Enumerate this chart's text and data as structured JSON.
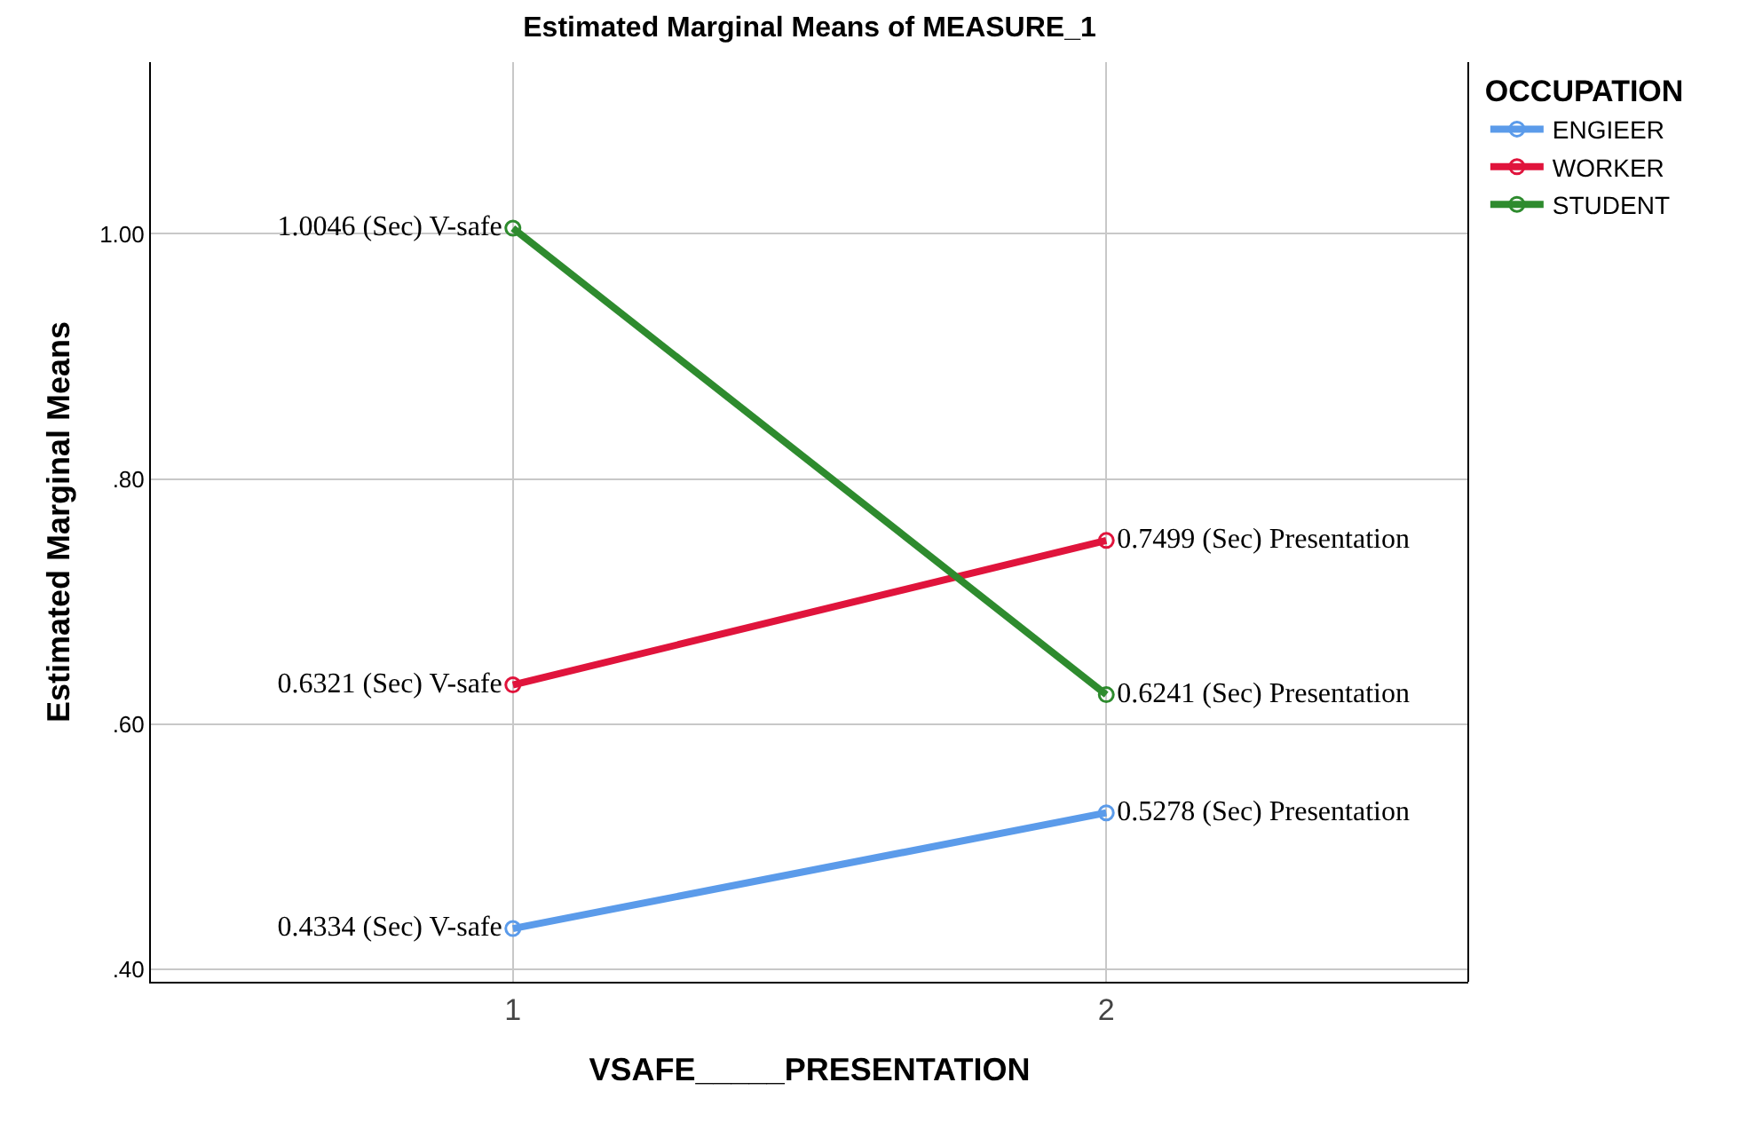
{
  "chart_data": {
    "type": "line",
    "title": "Estimated Marginal Means of MEASURE_1",
    "xlabel": "VSAFE_____PRESENTATION",
    "ylabel": "Estimated Marginal Means",
    "legend_title": "OCCUPATION",
    "categories": [
      "1",
      "2"
    ],
    "series": [
      {
        "name": "ENGIEER",
        "color": "#5b9bea",
        "values": [
          0.4334,
          0.5278
        ],
        "value_labels": [
          "0.4334 (Sec) V-safe",
          "0.5278 (Sec) Presentation"
        ]
      },
      {
        "name": "WORKER",
        "color": "#e0143c",
        "values": [
          0.6321,
          0.7499
        ],
        "value_labels": [
          "0.6321 (Sec) V-safe",
          "0.7499 (Sec) Presentation"
        ]
      },
      {
        "name": "STUDENT",
        "color": "#2e8b2e",
        "values": [
          1.0046,
          0.6241
        ],
        "value_labels": [
          "1.0046 (Sec) V-safe",
          "0.6241 (Sec) Presentation"
        ]
      }
    ],
    "ylim": [
      0.39,
      1.14
    ],
    "yticks": [
      {
        "value": 0.4,
        "label": ".40"
      },
      {
        "value": 0.6,
        "label": ".60"
      },
      {
        "value": 0.8,
        "label": ".80"
      },
      {
        "value": 1.0,
        "label": "1.00"
      }
    ],
    "grid": true,
    "legend": "top right",
    "marker": "circle",
    "line_style": "solid"
  }
}
